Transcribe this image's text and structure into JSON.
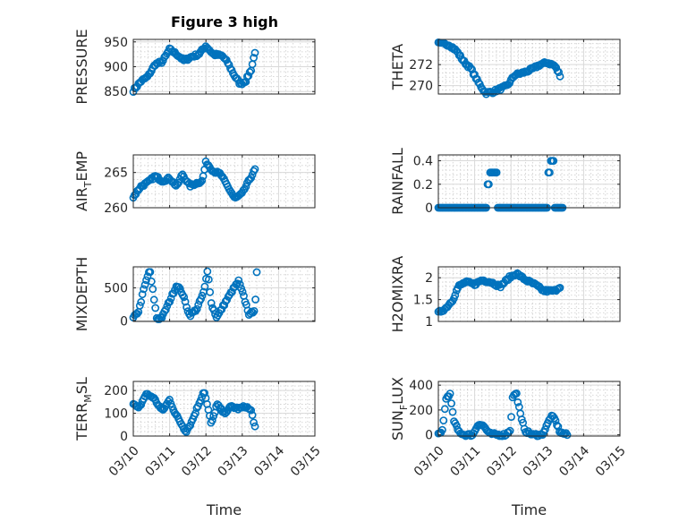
{
  "figure": {
    "title": "Figure 3 high"
  },
  "x_ticks": [
    "03/10",
    "03/11",
    "03/12",
    "03/13",
    "03/14",
    "03/15"
  ],
  "xlabel": "Time",
  "marker_color": "#0072BD",
  "chart_data": [
    {
      "type": "scatter",
      "name": "PRESSURE",
      "ylabel": "PRESSURE",
      "title": "Figure 3 high",
      "xlim": [
        0,
        5
      ],
      "ylim": [
        845,
        955
      ],
      "yticks": [
        850,
        900,
        950
      ],
      "grid": true,
      "show_xticks": false,
      "keys": [
        [
          0,
          852
        ],
        [
          0.2,
          870
        ],
        [
          0.4,
          880
        ],
        [
          0.6,
          905
        ],
        [
          0.8,
          910
        ],
        [
          1.0,
          935
        ],
        [
          1.2,
          925
        ],
        [
          1.4,
          912
        ],
        [
          1.6,
          920
        ],
        [
          1.8,
          925
        ],
        [
          2.0,
          942
        ],
        [
          2.2,
          925
        ],
        [
          2.45,
          922
        ],
        [
          2.6,
          908
        ],
        [
          2.8,
          880
        ],
        [
          2.95,
          865
        ],
        [
          3.1,
          872
        ],
        [
          3.25,
          895
        ],
        [
          3.35,
          930
        ]
      ]
    },
    {
      "type": "scatter",
      "name": "THETA",
      "ylabel": "THETA",
      "xlim": [
        0,
        5
      ],
      "ylim": [
        269.2,
        274.4
      ],
      "yticks": [
        270,
        272
      ],
      "grid": true,
      "show_xticks": false,
      "keys": [
        [
          0,
          274
        ],
        [
          0.3,
          273.9
        ],
        [
          0.5,
          273.3
        ],
        [
          0.7,
          272.3
        ],
        [
          0.9,
          271.6
        ],
        [
          1.1,
          270.3
        ],
        [
          1.3,
          269.3
        ],
        [
          1.5,
          269.4
        ],
        [
          1.7,
          269.7
        ],
        [
          1.9,
          270.0
        ],
        [
          2.1,
          271.0
        ],
        [
          2.4,
          271.3
        ],
        [
          2.6,
          271.6
        ],
        [
          2.8,
          272.0
        ],
        [
          3.0,
          272.2
        ],
        [
          3.2,
          271.9
        ],
        [
          3.35,
          271.0
        ]
      ]
    },
    {
      "type": "scatter",
      "name": "AIR_TEMP",
      "ylabel": "AIR",
      "ylabel_sub": "T",
      "ylabel_rest": "EMP",
      "xlim": [
        0,
        5
      ],
      "ylim": [
        260,
        267.5
      ],
      "yticks": [
        260,
        265
      ],
      "grid": true,
      "show_xticks": false,
      "keys": [
        [
          0,
          261.5
        ],
        [
          0.2,
          263
        ],
        [
          0.4,
          263.6
        ],
        [
          0.6,
          264.5
        ],
        [
          0.8,
          263.8
        ],
        [
          1.0,
          264.2
        ],
        [
          1.2,
          263.0
        ],
        [
          1.35,
          264.8
        ],
        [
          1.55,
          263.1
        ],
        [
          1.75,
          263.5
        ],
        [
          1.9,
          263.8
        ],
        [
          2.0,
          266.5
        ],
        [
          2.2,
          265.2
        ],
        [
          2.4,
          264.8
        ],
        [
          2.6,
          263.0
        ],
        [
          2.8,
          261.3
        ],
        [
          3.0,
          262.0
        ],
        [
          3.2,
          264.0
        ],
        [
          3.35,
          265.4
        ]
      ]
    },
    {
      "type": "scatter",
      "name": "RAINFALL",
      "ylabel": "RAINFALL",
      "xlim": [
        0,
        5
      ],
      "ylim": [
        0,
        0.45
      ],
      "yticks": [
        0,
        0.2,
        0.4
      ],
      "ytick_labels": [
        "0",
        "0.2",
        "0.4"
      ],
      "grid": true,
      "show_xticks": false,
      "keys": [
        [
          0,
          0
        ],
        [
          1.3,
          0
        ],
        [
          1.32,
          0.2
        ],
        [
          1.37,
          0.2
        ],
        [
          1.4,
          0.3
        ],
        [
          1.6,
          0.3
        ],
        [
          1.62,
          0
        ],
        [
          2.95,
          0
        ],
        [
          3.0,
          0.3
        ],
        [
          3.05,
          0.3
        ],
        [
          3.08,
          0.4
        ],
        [
          3.18,
          0.4
        ],
        [
          3.2,
          0
        ],
        [
          3.42,
          0
        ]
      ]
    },
    {
      "type": "scatter",
      "name": "MIXDEPTH",
      "ylabel": "MIXDEPTH",
      "xlim": [
        0,
        5
      ],
      "ylim": [
        -10,
        820
      ],
      "yticks": [
        0,
        500
      ],
      "grid": true,
      "show_xticks": false,
      "keys": [
        [
          0,
          40
        ],
        [
          0.15,
          150
        ],
        [
          0.3,
          500
        ],
        [
          0.45,
          780
        ],
        [
          0.55,
          420
        ],
        [
          0.65,
          20
        ],
        [
          0.8,
          60
        ],
        [
          1.0,
          300
        ],
        [
          1.2,
          550
        ],
        [
          1.35,
          420
        ],
        [
          1.55,
          80
        ],
        [
          1.75,
          180
        ],
        [
          1.95,
          450
        ],
        [
          2.05,
          780
        ],
        [
          2.15,
          250
        ],
        [
          2.3,
          50
        ],
        [
          2.5,
          250
        ],
        [
          2.75,
          480
        ],
        [
          2.9,
          600
        ],
        [
          3.05,
          350
        ],
        [
          3.2,
          80
        ],
        [
          3.35,
          180
        ],
        [
          3.4,
          720
        ]
      ]
    },
    {
      "type": "scatter",
      "name": "H2OMIXRA",
      "ylabel": "H2OMIXRA",
      "xlim": [
        0,
        5
      ],
      "ylim": [
        1,
        2.25
      ],
      "yticks": [
        1,
        1.5,
        2
      ],
      "grid": true,
      "show_xticks": false,
      "keys": [
        [
          0,
          1.2
        ],
        [
          0.2,
          1.3
        ],
        [
          0.4,
          1.5
        ],
        [
          0.55,
          1.8
        ],
        [
          0.75,
          1.9
        ],
        [
          1.0,
          1.85
        ],
        [
          1.2,
          1.95
        ],
        [
          1.45,
          1.9
        ],
        [
          1.7,
          1.8
        ],
        [
          1.95,
          2.0
        ],
        [
          2.15,
          2.1
        ],
        [
          2.4,
          1.95
        ],
        [
          2.65,
          1.85
        ],
        [
          2.9,
          1.7
        ],
        [
          3.2,
          1.7
        ],
        [
          3.35,
          1.8
        ]
      ]
    },
    {
      "type": "scatter",
      "name": "TERR_MSL",
      "ylabel": "TERR",
      "ylabel_sub": "M",
      "ylabel_rest": "SL",
      "xlim": [
        0,
        5
      ],
      "ylim": [
        0,
        240
      ],
      "yticks": [
        0,
        100,
        200
      ],
      "grid": true,
      "show_xticks": true,
      "keys": [
        [
          0,
          140
        ],
        [
          0.15,
          120
        ],
        [
          0.35,
          185
        ],
        [
          0.55,
          170
        ],
        [
          0.8,
          110
        ],
        [
          1.0,
          160
        ],
        [
          1.15,
          100
        ],
        [
          1.3,
          60
        ],
        [
          1.45,
          20
        ],
        [
          1.6,
          60
        ],
        [
          1.75,
          120
        ],
        [
          1.95,
          200
        ],
        [
          2.15,
          50
        ],
        [
          2.3,
          140
        ],
        [
          2.5,
          100
        ],
        [
          2.7,
          130
        ],
        [
          2.9,
          120
        ],
        [
          3.1,
          130
        ],
        [
          3.25,
          110
        ],
        [
          3.35,
          40
        ]
      ]
    },
    {
      "type": "scatter",
      "name": "SUN_FLUX",
      "ylabel": "SUN",
      "ylabel_sub": "F",
      "ylabel_rest": "LUX",
      "xlim": [
        0,
        5
      ],
      "ylim": [
        -10,
        430
      ],
      "yticks": [
        0,
        200,
        400
      ],
      "grid": true,
      "show_xticks": true,
      "keys": [
        [
          0,
          0
        ],
        [
          0.1,
          20
        ],
        [
          0.22,
          300
        ],
        [
          0.32,
          330
        ],
        [
          0.42,
          120
        ],
        [
          0.55,
          30
        ],
        [
          0.7,
          0
        ],
        [
          0.95,
          0
        ],
        [
          1.1,
          90
        ],
        [
          1.25,
          70
        ],
        [
          1.4,
          10
        ],
        [
          1.6,
          0
        ],
        [
          1.85,
          0
        ],
        [
          1.98,
          40
        ],
        [
          2.05,
          320
        ],
        [
          2.15,
          330
        ],
        [
          2.28,
          130
        ],
        [
          2.4,
          30
        ],
        [
          2.6,
          0
        ],
        [
          2.85,
          0
        ],
        [
          2.95,
          50
        ],
        [
          3.1,
          150
        ],
        [
          3.2,
          130
        ],
        [
          3.35,
          20
        ],
        [
          3.55,
          0
        ]
      ]
    }
  ]
}
